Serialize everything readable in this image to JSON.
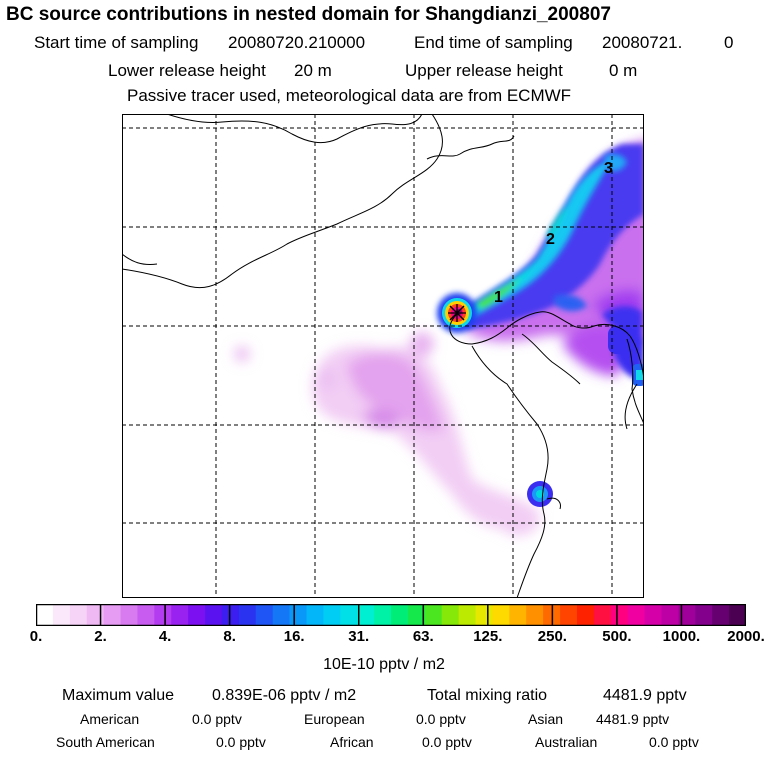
{
  "header": {
    "title": "BC  source contributions in nested domain for Shangdianzi_200807",
    "start_label": "Start time of sampling",
    "start_value": "20080720.210000",
    "end_label": "End time of sampling",
    "end_value": "20080721.",
    "end_suffix": "0",
    "lower_label": "Lower release height",
    "lower_value": "20 m",
    "upper_label": "Upper release height",
    "upper_value": "0 m",
    "note": "Passive tracer used, meteorological data are from ECMWF"
  },
  "map": {
    "labels": [
      "1",
      "2",
      "3"
    ],
    "source_marker": "asterisk"
  },
  "colorbar": {
    "ticks": [
      "0.",
      "2.",
      "4.",
      "8.",
      "16.",
      "31.",
      "63.",
      "125.",
      "250.",
      "500.",
      "1000.",
      "2000."
    ],
    "colors": [
      "#ffffff",
      "#fbe9fb",
      "#f6d4f7",
      "#efbaf4",
      "#e69cf2",
      "#d97bf0",
      "#c85cf0",
      "#b33cf0",
      "#9a22f0",
      "#7d10f0",
      "#5a12f0",
      "#3c1ef0",
      "#2a34f0",
      "#1e55f4",
      "#1478f6",
      "#0a98f8",
      "#03b5f9",
      "#00cdf3",
      "#00e0e6",
      "#00efd3",
      "#00f2a6",
      "#00ee78",
      "#14e84a",
      "#4ce620",
      "#85e808",
      "#bcea00",
      "#e6e800",
      "#ffda00",
      "#ffb500",
      "#ff9000",
      "#ff6a00",
      "#ff4400",
      "#ff2200",
      "#ff1040",
      "#ff0080",
      "#f000a0",
      "#d600a8",
      "#bc00a6",
      "#a0009a",
      "#82008c",
      "#660070",
      "#4c0052"
    ],
    "units": "10E-10 pptv / m2"
  },
  "summary": {
    "max_label": "Maximum value",
    "max_value": "0.839E-06 pptv / m2",
    "total_label": "Total mixing ratio",
    "total_value": "4481.9 pptv",
    "regions": [
      {
        "name": "American",
        "value": "0.0 pptv"
      },
      {
        "name": "European",
        "value": "0.0 pptv"
      },
      {
        "name": "Asian",
        "value": "4481.9 pptv"
      },
      {
        "name": "South American",
        "value": "0.0 pptv"
      },
      {
        "name": "African",
        "value": "0.0 pptv"
      },
      {
        "name": "Australian",
        "value": "0.0 pptv"
      }
    ]
  }
}
